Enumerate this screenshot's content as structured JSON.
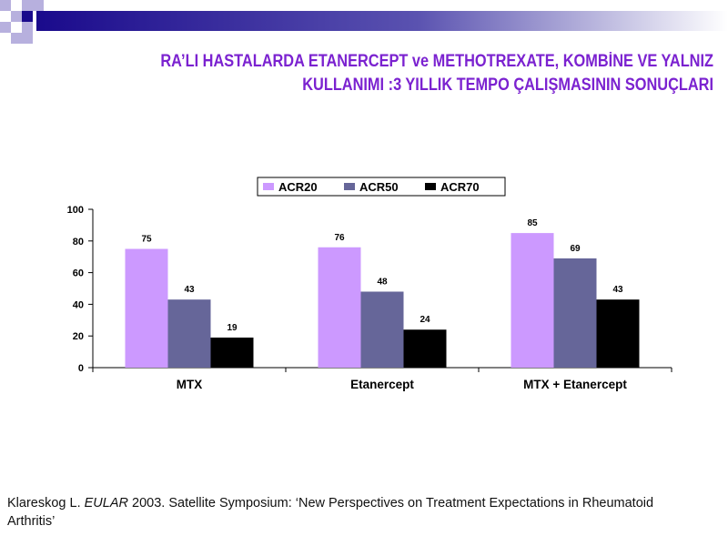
{
  "slide": {
    "title_line1": "RA’LI HASTALARDA ETANERCEPT ve  METHOTREXATE, KOMBİNE VE YALNIZ",
    "title_line2": "KULLANIMI :3 YILLIK  TEMPO ÇALIŞMASININ SONUÇLARI",
    "citation_pre": "Klareskog L. ",
    "citation_italic": "EULAR",
    "citation_post": " 2003. Satellite Symposium: ‘New Perspectives on Treatment Expectations in Rheumatoid Arthritis’"
  },
  "colors": {
    "title": "#7b22d0",
    "deco_dark": "#1a0a8c",
    "deco_light": "#b7b0de"
  },
  "chart_data": {
    "type": "bar",
    "categories": [
      "MTX",
      "Etanercept",
      "MTX + Etanercept"
    ],
    "series": [
      {
        "name": "ACR20",
        "values": [
          75,
          76,
          85
        ],
        "color": "#cc99ff"
      },
      {
        "name": "ACR50",
        "values": [
          43,
          48,
          69
        ],
        "color": "#666699"
      },
      {
        "name": "ACR70",
        "values": [
          19,
          24,
          43
        ],
        "color": "#000000"
      }
    ],
    "ylim": [
      0,
      100
    ],
    "yticks": [
      0,
      20,
      40,
      60,
      80,
      100
    ],
    "legend_position": "top",
    "grid": false
  }
}
